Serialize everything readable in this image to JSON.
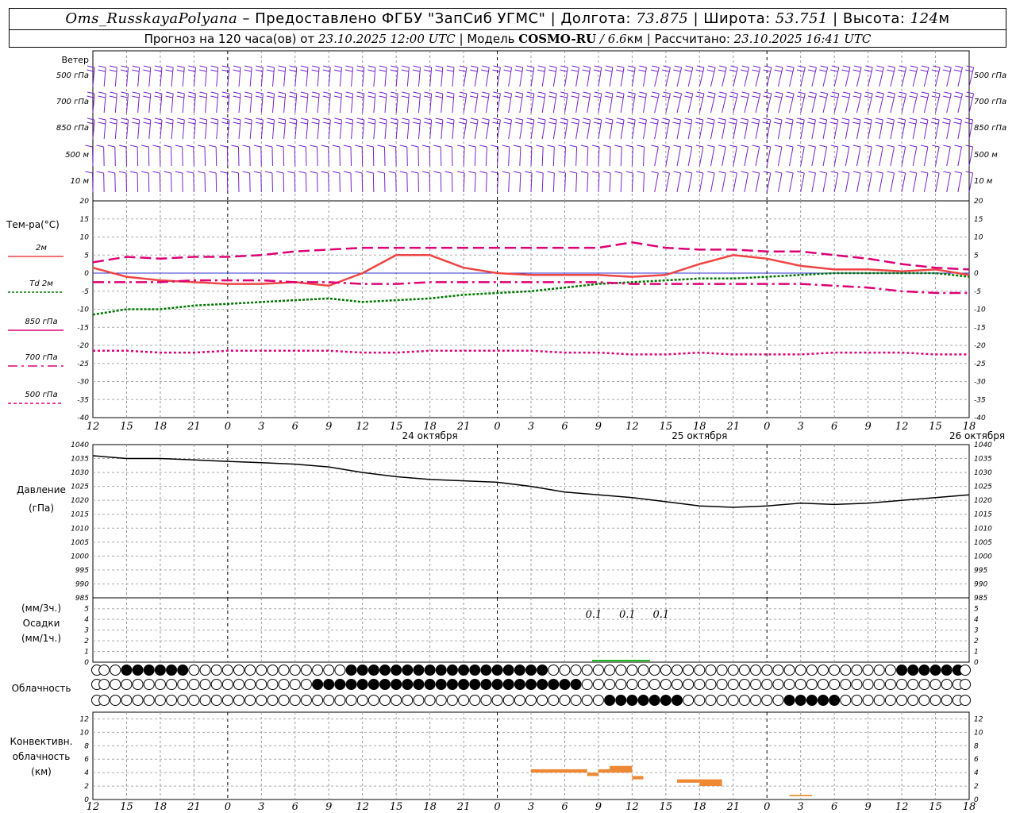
{
  "header": {
    "station": "Oms_RusskayaPolyana",
    "provider": " – Предоставлено ФГБУ \"ЗапСиб УГМС\" | Долгота: ",
    "lon": "73.875",
    "lat_label": " | Широта: ",
    "lat": "53.751",
    "alt_label": " | Высота: ",
    "alt": "124",
    "alt_unit": "м",
    "forecast_prefix": "Прогноз на 120 часа(ов) от ",
    "forecast_from": "23.10.2025 12:00 UTC",
    "model_label": " | Модель ",
    "model": "COSMO-RU",
    "resolution": " / 6.6",
    "res_unit": "км",
    "calc_label": " | Рассчитано: ",
    "calc_time": "23.10.2025 16:41 UTC"
  },
  "labels": {
    "wind": "Ветер",
    "wind_levels": [
      "500 гПа",
      "700 гПа",
      "850 гПа",
      "500 м",
      "10 м"
    ],
    "temp_title": "Тем-ра(°C)",
    "temp_legend": [
      {
        "label": "2м",
        "color": "#ee4444",
        "dash": ""
      },
      {
        "label": "Td 2м",
        "color": "#007700",
        "dash": "3,2"
      },
      {
        "label": "850 гПа",
        "color": "#dd0077",
        "dash": ""
      },
      {
        "label": "700 гПа",
        "color": "#dd0077",
        "dash": "12,5,3,5"
      },
      {
        "label": "500 гПа",
        "color": "#dd0077",
        "dash": "4,3"
      }
    ],
    "pressure": [
      "Давление",
      "(гПа)"
    ],
    "precip": [
      "(мм/3ч.)",
      "Осадки",
      "(мм/1ч.)"
    ],
    "cloud": "Облачность",
    "conv": [
      "Конвективн.",
      "облачность",
      "(км)"
    ],
    "precip_vals": [
      "0.1",
      "0.1",
      "0.1"
    ]
  },
  "chart_data": [
    {
      "type": "line",
      "title": "Ветер",
      "x_hours_from": "23.10.2025 12:00 UTC",
      "levels": [
        "500 гПа",
        "700 гПа",
        "850 гПа",
        "500 м",
        "10 м"
      ]
    },
    {
      "type": "line",
      "title": "Тем-ра(°C)",
      "ylim": [
        -40,
        20
      ],
      "yticks": [
        20,
        15,
        10,
        5,
        0,
        -5,
        -10,
        -15,
        -20,
        -25,
        -30,
        -35,
        -40
      ],
      "x_ticks": [
        "12",
        "15",
        "18",
        "21",
        "0",
        "3",
        "6",
        "9",
        "12",
        "15",
        "18",
        "21",
        "0",
        "3",
        "6",
        "9",
        "12",
        "15",
        "18",
        "21",
        "0",
        "3",
        "6",
        "9",
        "12",
        "15",
        "18"
      ],
      "day_labels": [
        "24 октября",
        "25 октября",
        "26 октября"
      ],
      "series": [
        {
          "name": "2м",
          "x": [
            0,
            3,
            6,
            9,
            12,
            15,
            18,
            21,
            24,
            27,
            30,
            33,
            36,
            39,
            42,
            45,
            48,
            51,
            54,
            57,
            60,
            63,
            66,
            69,
            72,
            75,
            78
          ],
          "values": [
            1.5,
            -1,
            -2,
            -2.5,
            -3,
            -3,
            -2.5,
            -3.5,
            0,
            5,
            5,
            1.5,
            0,
            -0.5,
            -0.5,
            -0.5,
            -1,
            -0.5,
            2.5,
            5,
            4,
            2,
            1,
            1,
            0.5,
            1,
            -0.5
          ]
        },
        {
          "name": "Td 2м",
          "x": [
            0,
            3,
            6,
            9,
            12,
            15,
            18,
            21,
            24,
            27,
            30,
            33,
            36,
            39,
            42,
            45,
            48,
            51,
            54,
            57,
            60,
            63,
            66,
            69,
            72,
            75,
            78
          ],
          "values": [
            -11.5,
            -10,
            -10,
            -9,
            -8.5,
            -8,
            -7.5,
            -7,
            -8,
            -7.5,
            -7,
            -6,
            -5.5,
            -5,
            -4,
            -3,
            -2.5,
            -2,
            -1.5,
            -1.5,
            -1,
            -0.5,
            0,
            0,
            0,
            0,
            -1
          ]
        },
        {
          "name": "850 гПа",
          "x": [
            0,
            3,
            6,
            9,
            12,
            15,
            18,
            21,
            24,
            27,
            30,
            33,
            36,
            39,
            42,
            45,
            48,
            51,
            54,
            57,
            60,
            63,
            66,
            69,
            72,
            75,
            78
          ],
          "values": [
            3,
            4.5,
            4,
            4.5,
            4.5,
            5,
            6,
            6.5,
            7,
            7,
            7,
            7,
            7,
            7,
            7,
            7,
            8.5,
            7,
            6.5,
            6.5,
            6,
            6,
            5,
            4,
            2.5,
            1.5,
            1
          ]
        },
        {
          "name": "700 гПа",
          "x": [
            0,
            3,
            6,
            9,
            12,
            15,
            18,
            21,
            24,
            27,
            30,
            33,
            36,
            39,
            42,
            45,
            48,
            51,
            54,
            57,
            60,
            63,
            66,
            69,
            72,
            75,
            78
          ],
          "values": [
            -2.5,
            -2.5,
            -2.5,
            -2,
            -2,
            -2,
            -2.5,
            -2.5,
            -3,
            -3,
            -2.5,
            -2.5,
            -2.5,
            -2.5,
            -2.5,
            -2.5,
            -3,
            -3,
            -3,
            -3,
            -3,
            -3,
            -3.5,
            -4,
            -5,
            -5.5,
            -5.5
          ]
        },
        {
          "name": "500 гПа",
          "x": [
            0,
            3,
            6,
            9,
            12,
            15,
            18,
            21,
            24,
            27,
            30,
            33,
            36,
            39,
            42,
            45,
            48,
            51,
            54,
            57,
            60,
            63,
            66,
            69,
            72,
            75,
            78
          ],
          "values": [
            -21.5,
            -21.5,
            -22,
            -22,
            -21.5,
            -21.5,
            -21.5,
            -21.5,
            -22,
            -22,
            -21.5,
            -21.5,
            -21.5,
            -21.5,
            -22,
            -22,
            -22.5,
            -22.5,
            -22,
            -22.5,
            -22.5,
            -22.5,
            -22,
            -22,
            -22,
            -22.5,
            -22.5
          ]
        }
      ]
    },
    {
      "type": "line",
      "title": "Давление",
      "ylabel": "(гПа)",
      "ylim": [
        985,
        1040
      ],
      "yticks": [
        1040,
        1035,
        1030,
        1025,
        1020,
        1015,
        1010,
        1005,
        1000,
        995,
        990,
        985
      ],
      "x": [
        0,
        3,
        6,
        9,
        12,
        15,
        18,
        21,
        24,
        27,
        30,
        33,
        36,
        39,
        42,
        45,
        48,
        51,
        54,
        57,
        60,
        63,
        66,
        69,
        72,
        75,
        78
      ],
      "values": [
        1036,
        1035,
        1035,
        1034.5,
        1034,
        1033.5,
        1033,
        1032,
        1030,
        1028.5,
        1027.5,
        1027,
        1026.5,
        1025,
        1023,
        1022,
        1021,
        1019.5,
        1018,
        1017.5,
        1018,
        1019,
        1018.5,
        1019,
        1020,
        1021,
        1022
      ]
    },
    {
      "type": "bar",
      "title": "Осадки",
      "ylim": [
        0,
        5
      ],
      "yticks": [
        5,
        4,
        3,
        2,
        1,
        0
      ],
      "data_labels": [
        "0.1",
        "0.1",
        "0.1"
      ]
    },
    {
      "type": "table",
      "title": "Облачность"
    },
    {
      "type": "bar",
      "title": "Конвективн. облачность (км)",
      "ylim": [
        0,
        13
      ],
      "yticks": [
        12,
        10,
        8,
        6,
        4,
        2,
        0
      ]
    }
  ]
}
